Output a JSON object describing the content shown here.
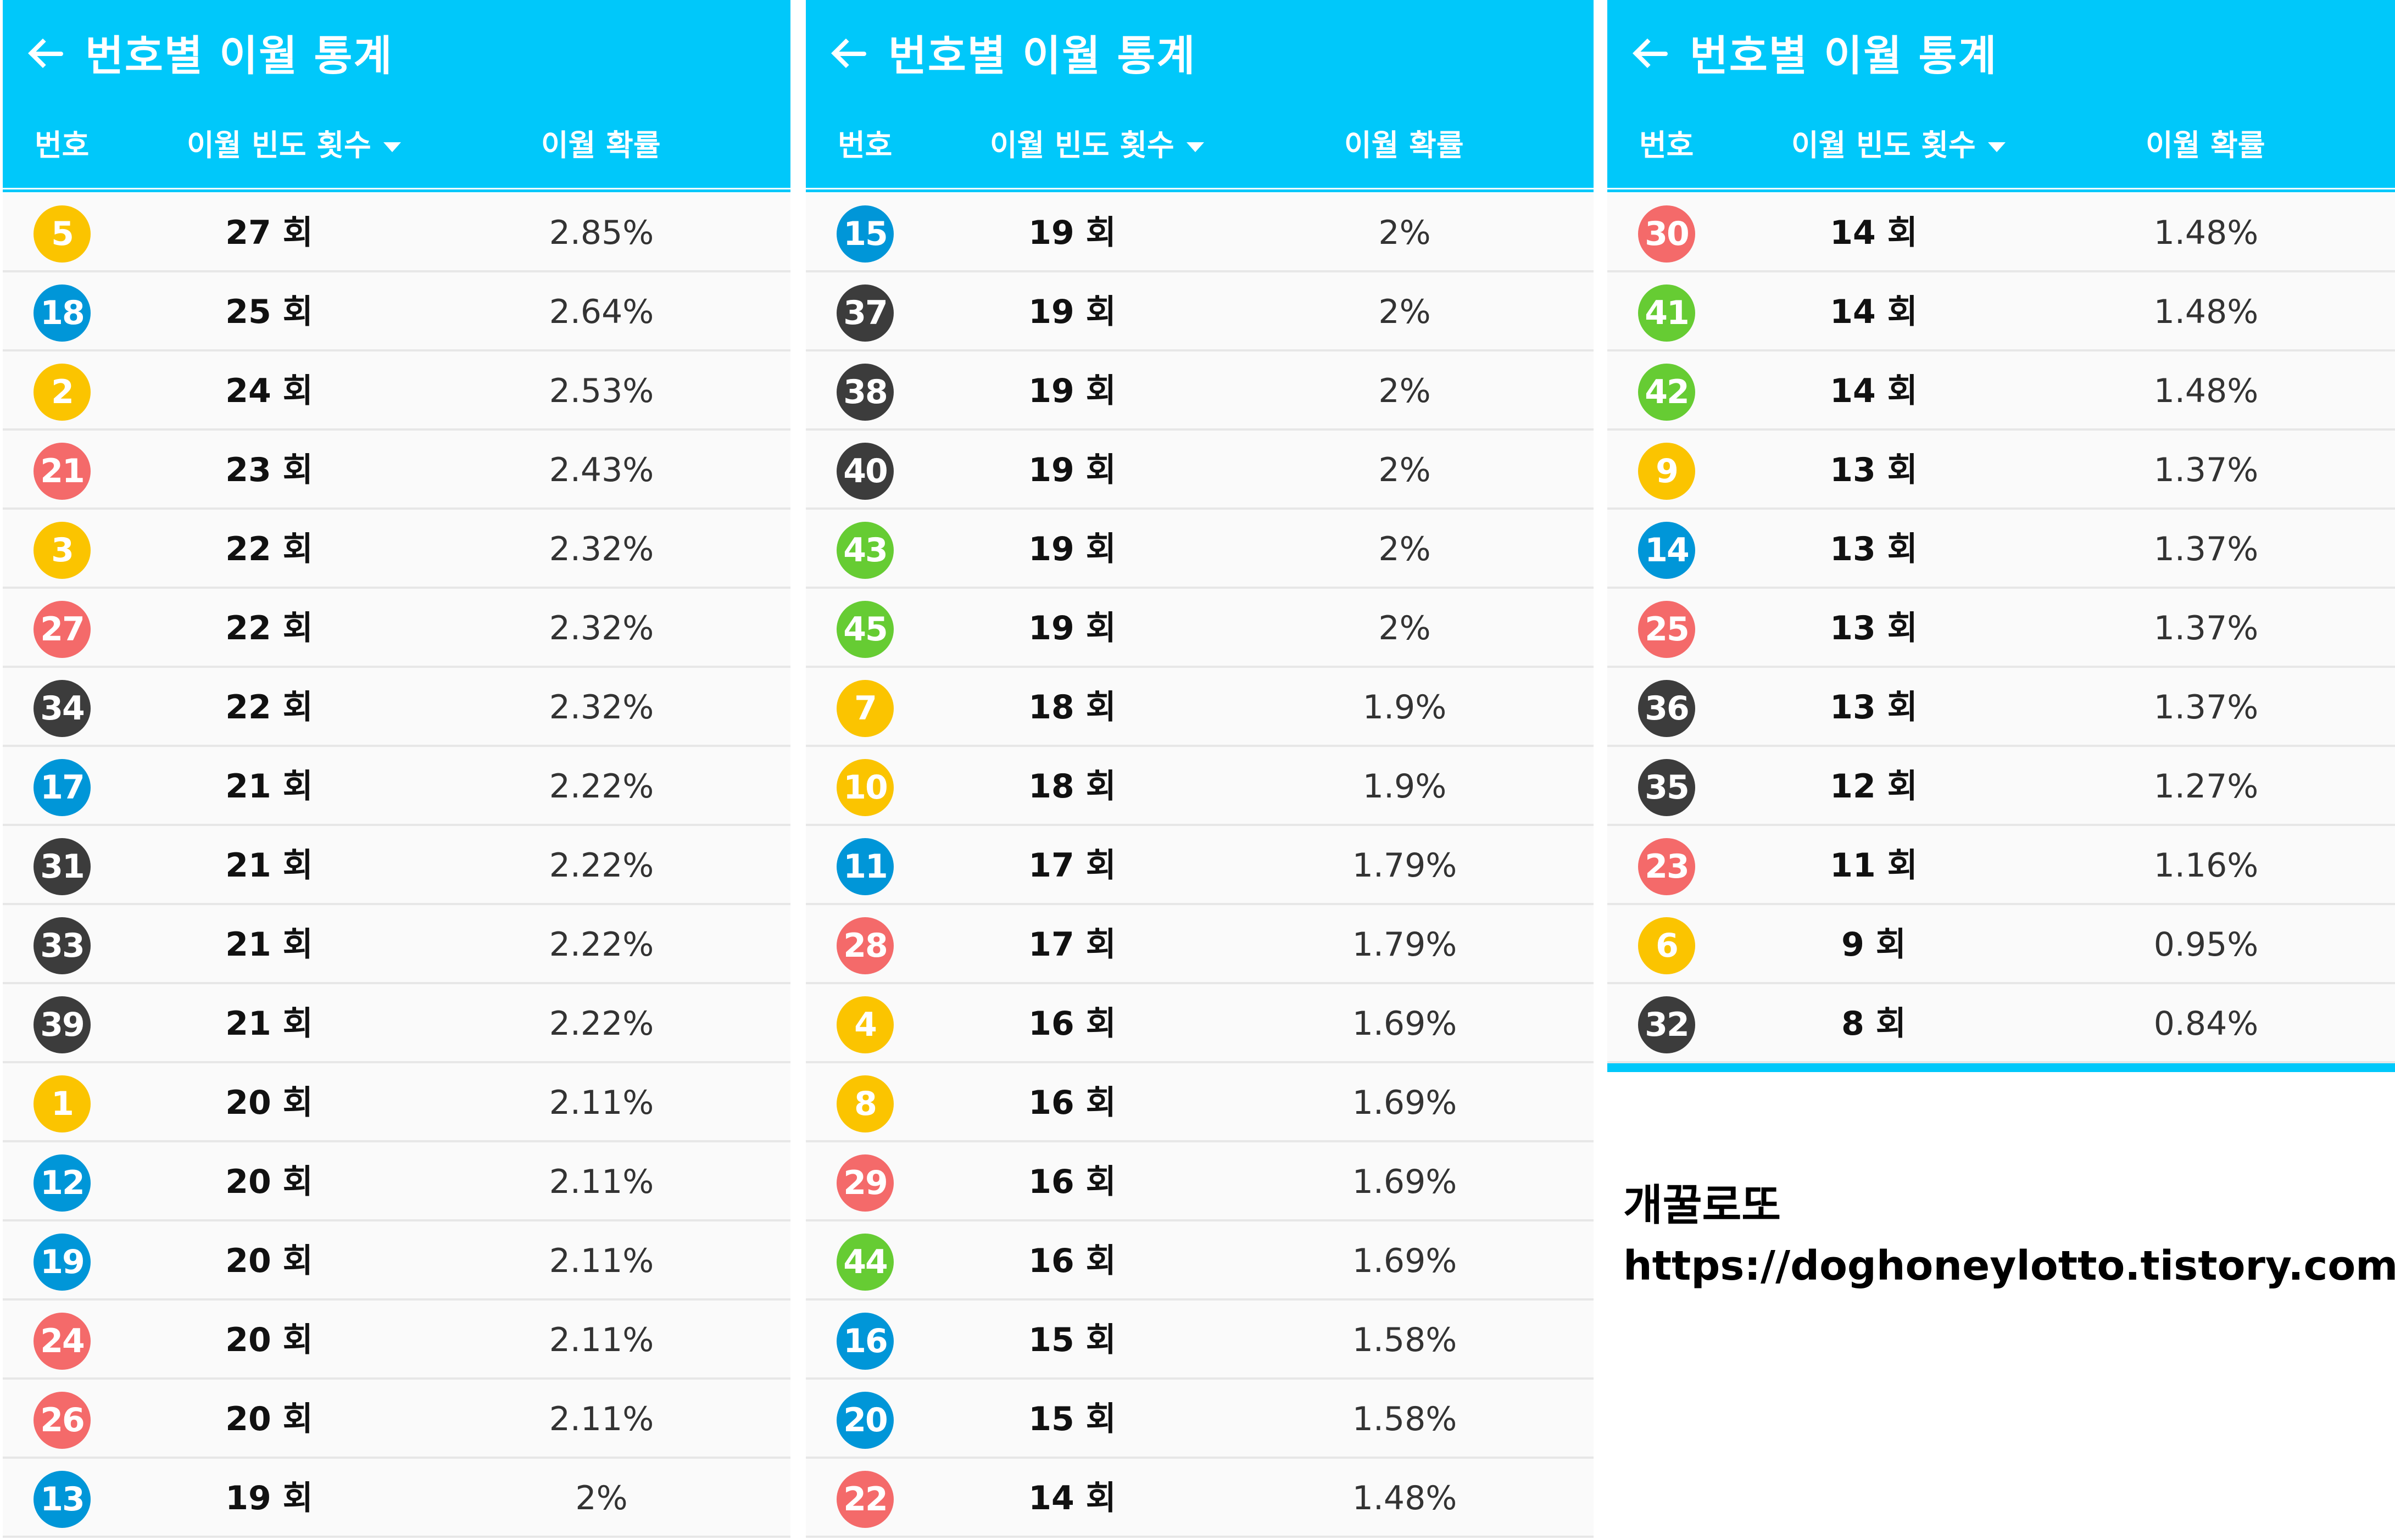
{
  "colors": {
    "header_bg": "#00c8fa",
    "yellow": "#fbc400",
    "blue": "#0096d8",
    "red": "#f46a6a",
    "gray": "#3c3c3c",
    "green": "#66cc33"
  },
  "icons": {
    "back": "arrow-left-icon",
    "sort": "caret-down-icon"
  },
  "panels": [
    {
      "title": "번호별 이월 통계",
      "col_num": "번호",
      "col_freq": "이월 빈도 횟수",
      "col_prob": "이월 확률",
      "rows": [
        {
          "num": "5",
          "color": "yellow",
          "freq": "27 회",
          "prob": "2.85%"
        },
        {
          "num": "18",
          "color": "blue",
          "freq": "25 회",
          "prob": "2.64%"
        },
        {
          "num": "2",
          "color": "yellow",
          "freq": "24 회",
          "prob": "2.53%"
        },
        {
          "num": "21",
          "color": "red",
          "freq": "23 회",
          "prob": "2.43%"
        },
        {
          "num": "3",
          "color": "yellow",
          "freq": "22 회",
          "prob": "2.32%"
        },
        {
          "num": "27",
          "color": "red",
          "freq": "22 회",
          "prob": "2.32%"
        },
        {
          "num": "34",
          "color": "gray",
          "freq": "22 회",
          "prob": "2.32%"
        },
        {
          "num": "17",
          "color": "blue",
          "freq": "21 회",
          "prob": "2.22%"
        },
        {
          "num": "31",
          "color": "gray",
          "freq": "21 회",
          "prob": "2.22%"
        },
        {
          "num": "33",
          "color": "gray",
          "freq": "21 회",
          "prob": "2.22%"
        },
        {
          "num": "39",
          "color": "gray",
          "freq": "21 회",
          "prob": "2.22%"
        },
        {
          "num": "1",
          "color": "yellow",
          "freq": "20 회",
          "prob": "2.11%"
        },
        {
          "num": "12",
          "color": "blue",
          "freq": "20 회",
          "prob": "2.11%"
        },
        {
          "num": "19",
          "color": "blue",
          "freq": "20 회",
          "prob": "2.11%"
        },
        {
          "num": "24",
          "color": "red",
          "freq": "20 회",
          "prob": "2.11%"
        },
        {
          "num": "26",
          "color": "red",
          "freq": "20 회",
          "prob": "2.11%"
        },
        {
          "num": "13",
          "color": "blue",
          "freq": "19 회",
          "prob": "2%"
        }
      ]
    },
    {
      "title": "번호별 이월 통계",
      "col_num": "번호",
      "col_freq": "이월 빈도 횟수",
      "col_prob": "이월 확률",
      "rows": [
        {
          "num": "15",
          "color": "blue",
          "freq": "19 회",
          "prob": "2%"
        },
        {
          "num": "37",
          "color": "gray",
          "freq": "19 회",
          "prob": "2%"
        },
        {
          "num": "38",
          "color": "gray",
          "freq": "19 회",
          "prob": "2%"
        },
        {
          "num": "40",
          "color": "gray",
          "freq": "19 회",
          "prob": "2%"
        },
        {
          "num": "43",
          "color": "green",
          "freq": "19 회",
          "prob": "2%"
        },
        {
          "num": "45",
          "color": "green",
          "freq": "19 회",
          "prob": "2%"
        },
        {
          "num": "7",
          "color": "yellow",
          "freq": "18 회",
          "prob": "1.9%"
        },
        {
          "num": "10",
          "color": "yellow",
          "freq": "18 회",
          "prob": "1.9%"
        },
        {
          "num": "11",
          "color": "blue",
          "freq": "17 회",
          "prob": "1.79%"
        },
        {
          "num": "28",
          "color": "red",
          "freq": "17 회",
          "prob": "1.79%"
        },
        {
          "num": "4",
          "color": "yellow",
          "freq": "16 회",
          "prob": "1.69%"
        },
        {
          "num": "8",
          "color": "yellow",
          "freq": "16 회",
          "prob": "1.69%"
        },
        {
          "num": "29",
          "color": "red",
          "freq": "16 회",
          "prob": "1.69%"
        },
        {
          "num": "44",
          "color": "green",
          "freq": "16 회",
          "prob": "1.69%"
        },
        {
          "num": "16",
          "color": "blue",
          "freq": "15 회",
          "prob": "1.58%"
        },
        {
          "num": "20",
          "color": "blue",
          "freq": "15 회",
          "prob": "1.58%"
        },
        {
          "num": "22",
          "color": "red",
          "freq": "14 회",
          "prob": "1.48%"
        }
      ]
    },
    {
      "title": "번호별 이월 통계",
      "col_num": "번호",
      "col_freq": "이월 빈도 횟수",
      "col_prob": "이월 확률",
      "rows": [
        {
          "num": "30",
          "color": "red",
          "freq": "14 회",
          "prob": "1.48%"
        },
        {
          "num": "41",
          "color": "green",
          "freq": "14 회",
          "prob": "1.48%"
        },
        {
          "num": "42",
          "color": "green",
          "freq": "14 회",
          "prob": "1.48%"
        },
        {
          "num": "9",
          "color": "yellow",
          "freq": "13 회",
          "prob": "1.37%"
        },
        {
          "num": "14",
          "color": "blue",
          "freq": "13 회",
          "prob": "1.37%"
        },
        {
          "num": "25",
          "color": "red",
          "freq": "13 회",
          "prob": "1.37%"
        },
        {
          "num": "36",
          "color": "gray",
          "freq": "13 회",
          "prob": "1.37%"
        },
        {
          "num": "35",
          "color": "gray",
          "freq": "12 회",
          "prob": "1.27%"
        },
        {
          "num": "23",
          "color": "red",
          "freq": "11 회",
          "prob": "1.16%"
        },
        {
          "num": "6",
          "color": "yellow",
          "freq": "9 회",
          "prob": "0.95%"
        },
        {
          "num": "32",
          "color": "gray",
          "freq": "8 회",
          "prob": "0.84%"
        }
      ]
    }
  ],
  "watermark": {
    "name": "개꿀로또",
    "url": "https://doghoneylotto.tistory.com"
  }
}
